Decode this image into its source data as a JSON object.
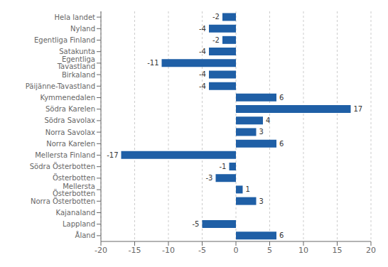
{
  "chart_data": {
    "type": "bar",
    "orientation": "horizontal",
    "categories": [
      "Hela landet",
      "Nyland",
      "Egentliga Finland",
      "Satakunta",
      "Egentliga Tavastland",
      "Birkaland",
      "Päijänne-Tavastland",
      "Kymmenedalen",
      "Södra Karelen",
      "Södra Savolax",
      "Norra Savolax",
      "Norra Karelen",
      "Mellersta Finland",
      "Södra Österbotten",
      "Österbotten",
      "Mellersta Österbotten",
      "Norra Österbotten",
      "Kajanaland",
      "Lappland",
      "Åland"
    ],
    "values": [
      -2,
      -4,
      -2,
      -4,
      -11,
      -4,
      -4,
      6,
      17,
      4,
      3,
      6,
      -17,
      -1,
      -3,
      1,
      3,
      0,
      -5,
      6
    ],
    "color": "#1F5FA6",
    "xlim": [
      -20,
      20
    ],
    "xticks": [
      -20,
      -15,
      -10,
      -5,
      0,
      5,
      10,
      15,
      20
    ],
    "grid": true,
    "data_labels": true
  }
}
